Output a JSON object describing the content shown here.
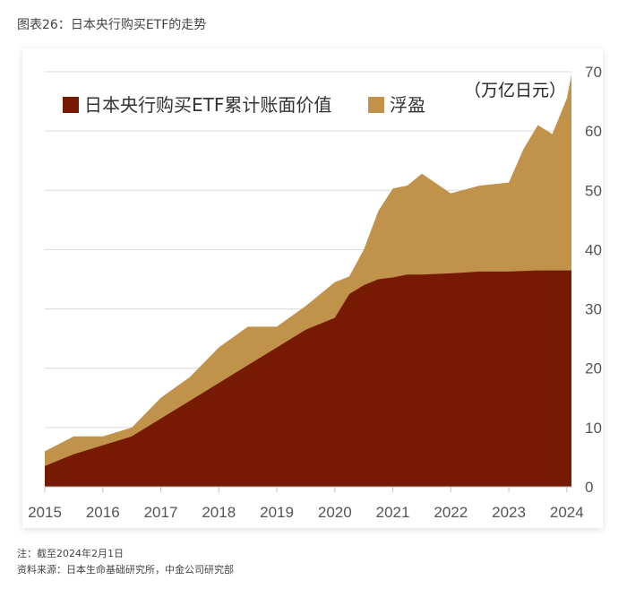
{
  "figure_title": "图表26：日本央行购买ETF的走势",
  "notes": {
    "note": "注：截至2024年2月1日",
    "source": "资料来源：日本生命基础研究所，中金公司研究部"
  },
  "colors": {
    "book_value": "#761a03",
    "unrealized_gain": "#c0924a",
    "gridline": "#d9d9d9",
    "axis": "#bfbfbf"
  },
  "chart_data": {
    "type": "area",
    "stacked": true,
    "title": "",
    "unit_label": "（万亿日元）",
    "xlabel": "",
    "ylabel": "",
    "ylim": [
      0,
      70
    ],
    "yticks": [
      "0",
      "10",
      "20",
      "30",
      "40",
      "50",
      "60",
      "70"
    ],
    "xticks": [
      "2015",
      "2016",
      "2017",
      "2018",
      "2019",
      "2020",
      "2021",
      "2022",
      "2023",
      "2024"
    ],
    "y_axis_side": "right",
    "grid": true,
    "legend_position": "top-left",
    "x": [
      2015.0,
      2015.5,
      2016.0,
      2016.5,
      2017.0,
      2017.5,
      2018.0,
      2018.5,
      2019.0,
      2019.5,
      2020.0,
      2020.25,
      2020.5,
      2020.75,
      2021.0,
      2021.25,
      2021.5,
      2022.0,
      2022.5,
      2023.0,
      2023.25,
      2023.5,
      2023.75,
      2024.0,
      2024.08
    ],
    "series": [
      {
        "name": "日本央行购买ETF累计账面价值",
        "values": [
          3.5,
          5.5,
          7.0,
          8.5,
          11.5,
          14.5,
          17.5,
          20.5,
          23.5,
          26.5,
          28.5,
          32.5,
          34.0,
          35.0,
          35.3,
          35.8,
          35.8,
          36.0,
          36.3,
          36.3,
          36.4,
          36.5,
          36.5,
          36.5,
          36.5
        ]
      },
      {
        "name": "浮盈",
        "values": [
          2.5,
          3.0,
          1.5,
          1.5,
          3.5,
          4.0,
          6.0,
          6.5,
          3.5,
          4.0,
          6.0,
          3.0,
          6.0,
          11.5,
          15.0,
          15.0,
          17.0,
          13.5,
          14.5,
          15.0,
          20.5,
          24.5,
          23.0,
          29.0,
          33.0
        ]
      }
    ]
  }
}
